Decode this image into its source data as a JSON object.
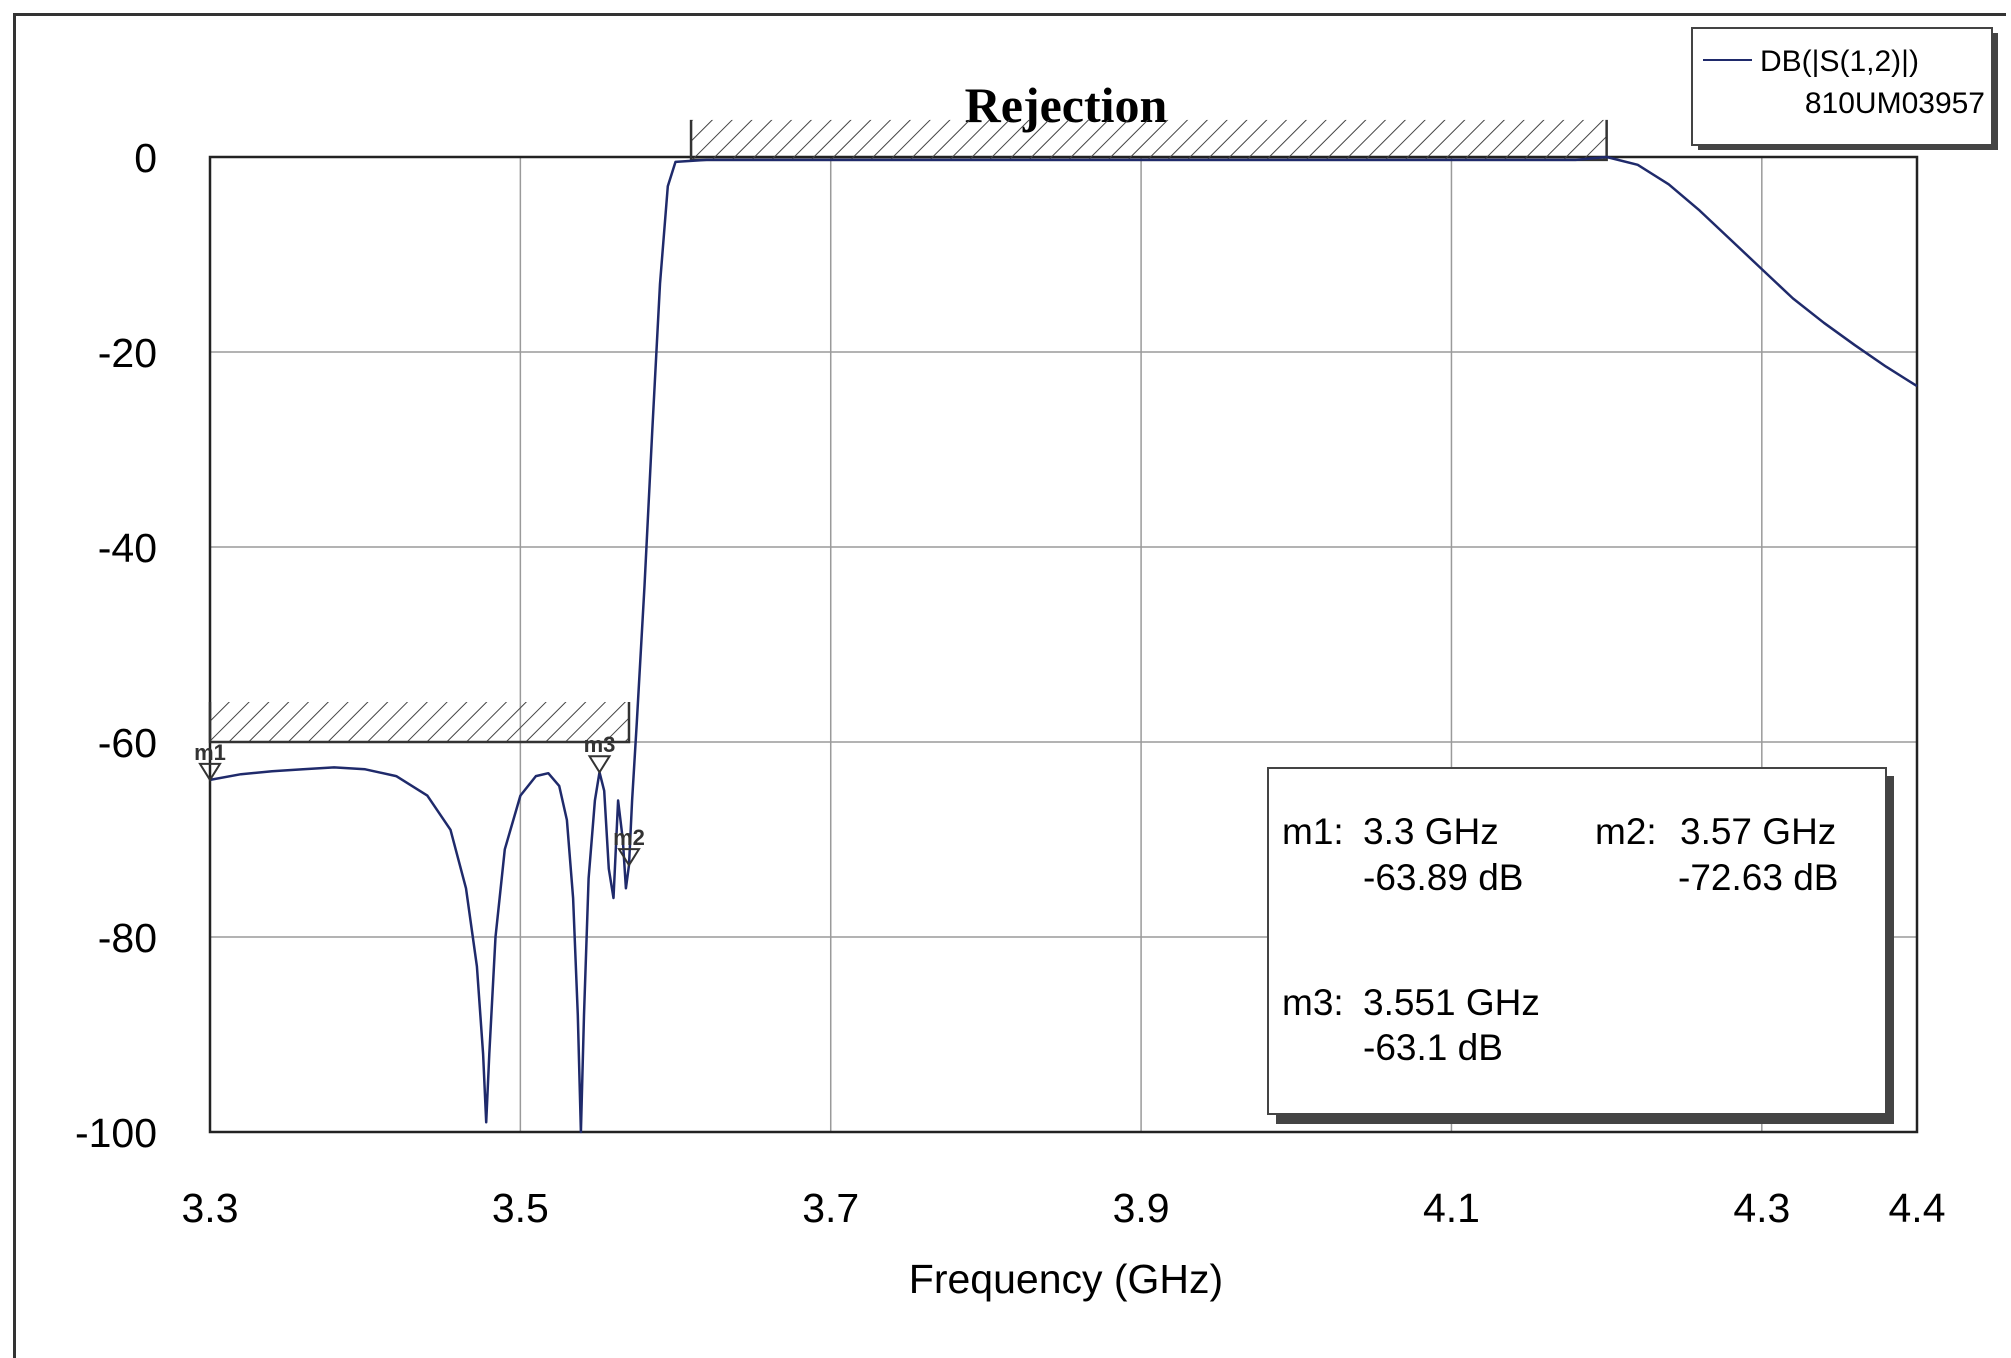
{
  "chart_data": {
    "type": "line",
    "title": "Rejection",
    "xlabel": "Frequency (GHz)",
    "ylabel": "",
    "xlim": [
      3.3,
      4.4
    ],
    "ylim": [
      -100,
      0
    ],
    "x_ticks": [
      3.3,
      3.5,
      3.7,
      3.9,
      4.1,
      4.3,
      4.4
    ],
    "x_tick_labels": [
      "3.3",
      "3.5",
      "3.7",
      "3.9",
      "4.1",
      "4.3",
      "4.4"
    ],
    "y_ticks": [
      0,
      -20,
      -40,
      -60,
      -80,
      -100
    ],
    "y_tick_labels": [
      "0",
      "-20",
      "-40",
      "-60",
      "-80",
      "-100"
    ],
    "grid": true,
    "legend_position": "top-right",
    "series": [
      {
        "name": "DB(|S(1,2)|)",
        "legend_sub": "810UM03957",
        "color": "#1f2a6b",
        "x": [
          3.3,
          3.32,
          3.34,
          3.36,
          3.38,
          3.4,
          3.42,
          3.44,
          3.455,
          3.465,
          3.472,
          3.476,
          3.478,
          3.48,
          3.484,
          3.49,
          3.5,
          3.51,
          3.518,
          3.525,
          3.53,
          3.534,
          3.537,
          3.539,
          3.541,
          3.544,
          3.548,
          3.551,
          3.554,
          3.557,
          3.56,
          3.563,
          3.566,
          3.568,
          3.57,
          3.572,
          3.575,
          3.58,
          3.585,
          3.59,
          3.595,
          3.6,
          3.62,
          3.7,
          3.8,
          3.9,
          4.0,
          4.1,
          4.18,
          4.2,
          4.22,
          4.24,
          4.26,
          4.28,
          4.3,
          4.32,
          4.34,
          4.36,
          4.38,
          4.4
        ],
        "y": [
          -63.89,
          -63.3,
          -63.0,
          -62.8,
          -62.6,
          -62.8,
          -63.5,
          -65.5,
          -69.0,
          -75.0,
          -83.0,
          -92.0,
          -99.0,
          -92.0,
          -80.0,
          -71.0,
          -65.5,
          -63.5,
          -63.2,
          -64.5,
          -68.0,
          -76.0,
          -88.0,
          -100.0,
          -88.0,
          -74.0,
          -66.0,
          -63.1,
          -65.0,
          -73.0,
          -76.0,
          -66.0,
          -70.0,
          -75.0,
          -72.63,
          -66.0,
          -58.0,
          -44.0,
          -28.0,
          -13.0,
          -3.0,
          -0.5,
          -0.3,
          -0.3,
          -0.3,
          -0.3,
          -0.3,
          -0.3,
          -0.3,
          0.0,
          -0.8,
          -2.8,
          -5.5,
          -8.5,
          -11.5,
          -14.5,
          -17.0,
          -19.3,
          -21.5,
          -23.5
        ]
      }
    ],
    "limit_lines": [
      {
        "kind": "rejection",
        "x": [
          3.3,
          3.57
        ],
        "y": -60
      },
      {
        "kind": "passband",
        "x": [
          3.61,
          4.2
        ],
        "y": -0.3
      }
    ],
    "markers": [
      {
        "label": "m1",
        "x": 3.3,
        "y": -63.89
      },
      {
        "label": "m2",
        "x": 3.57,
        "y": -72.63
      },
      {
        "label": "m3",
        "x": 3.551,
        "y": -63.1
      }
    ]
  },
  "legend": {
    "line1": "DB(|S(1,2)|)",
    "line2": "810UM03957"
  },
  "readout": {
    "m1_name": "m1:",
    "m1_freq": "3.3 GHz",
    "m1_val": "-63.89 dB",
    "m2_name": "m2:",
    "m2_freq": "3.57 GHz",
    "m2_val": "-72.63 dB",
    "m3_name": "m3:",
    "m3_freq": "3.551 GHz",
    "m3_val": "-63.1 dB"
  }
}
